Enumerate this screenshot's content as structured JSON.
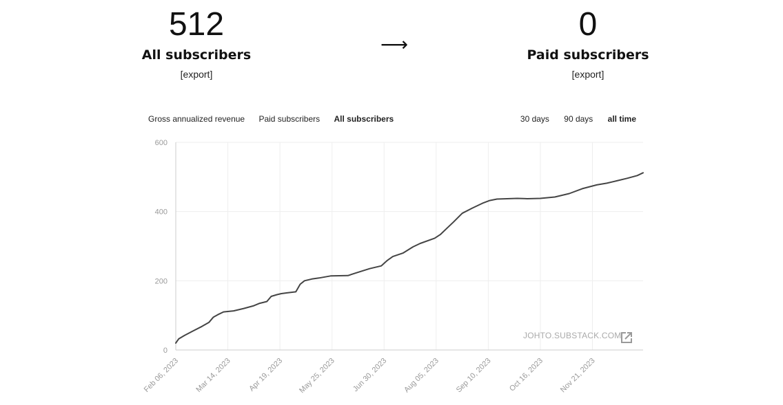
{
  "summary": {
    "all_subscribers": {
      "count": "512",
      "label": "All subscribers",
      "export": "[export]"
    },
    "arrow": "⟶",
    "paid_subscribers": {
      "count": "0",
      "label": "Paid subscribers",
      "export": "[export]"
    }
  },
  "metric_tabs": [
    {
      "label": "Gross annualized revenue",
      "active": false
    },
    {
      "label": "Paid subscribers",
      "active": false
    },
    {
      "label": "All subscribers",
      "active": true
    }
  ],
  "range_tabs": [
    {
      "label": "30 days",
      "active": false
    },
    {
      "label": "90 days",
      "active": false
    },
    {
      "label": "all time",
      "active": true
    }
  ],
  "watermark": "JOHTO.SUBSTACK.COM",
  "icons": {
    "external_link": "external-link-icon"
  },
  "colors": {
    "line": "#444444",
    "grid": "#eeeeee",
    "axis_text": "#999999"
  },
  "chart_data": {
    "type": "line",
    "title": "",
    "xlabel": "",
    "ylabel": "",
    "ylim": [
      0,
      600
    ],
    "yticks": [
      0,
      200,
      400,
      600
    ],
    "xlim": [
      "2023-02-06",
      "2023-12-26"
    ],
    "xticks": [
      "2023-02-06",
      "2023-03-14",
      "2023-04-19",
      "2023-05-25",
      "2023-06-30",
      "2023-08-05",
      "2023-09-10",
      "2023-10-16",
      "2023-11-21"
    ],
    "xtick_labels": [
      "Feb 06, 2023",
      "Mar 14, 2023",
      "Apr 19, 2023",
      "May 25, 2023",
      "Jun 30, 2023",
      "Aug 05, 2023",
      "Sep 10, 2023",
      "Oct 16, 2023",
      "Nov 21, 2023"
    ],
    "grid": true,
    "series": [
      {
        "x": [
          "2023-02-06",
          "2023-02-08",
          "2023-02-12",
          "2023-02-18",
          "2023-02-24",
          "2023-03-01",
          "2023-03-04",
          "2023-03-07",
          "2023-03-11",
          "2023-03-18",
          "2023-03-25",
          "2023-04-01",
          "2023-04-05",
          "2023-04-10",
          "2023-04-13",
          "2023-04-17",
          "2023-04-20",
          "2023-04-24",
          "2023-04-30",
          "2023-05-03",
          "2023-05-06",
          "2023-05-11",
          "2023-05-16",
          "2023-05-24",
          "2023-06-05",
          "2023-06-10",
          "2023-06-20",
          "2023-06-28",
          "2023-07-02",
          "2023-07-06",
          "2023-07-13",
          "2023-07-20",
          "2023-07-25",
          "2023-08-04",
          "2023-08-08",
          "2023-08-12",
          "2023-08-17",
          "2023-08-23",
          "2023-08-30",
          "2023-09-06",
          "2023-09-11",
          "2023-09-16",
          "2023-09-23",
          "2023-09-30",
          "2023-10-07",
          "2023-10-16",
          "2023-10-26",
          "2023-11-05",
          "2023-11-14",
          "2023-11-24",
          "2023-12-01",
          "2023-12-08",
          "2023-12-15",
          "2023-12-22",
          "2023-12-26"
        ],
        "y": [
          20,
          32,
          42,
          55,
          68,
          80,
          95,
          102,
          110,
          113,
          120,
          128,
          135,
          140,
          155,
          160,
          163,
          165,
          168,
          190,
          200,
          205,
          208,
          214,
          215,
          222,
          235,
          243,
          258,
          270,
          280,
          298,
          308,
          323,
          334,
          350,
          370,
          395,
          410,
          424,
          432,
          436,
          437,
          438,
          437,
          438,
          442,
          452,
          466,
          477,
          482,
          489,
          496,
          504,
          512
        ]
      }
    ]
  }
}
